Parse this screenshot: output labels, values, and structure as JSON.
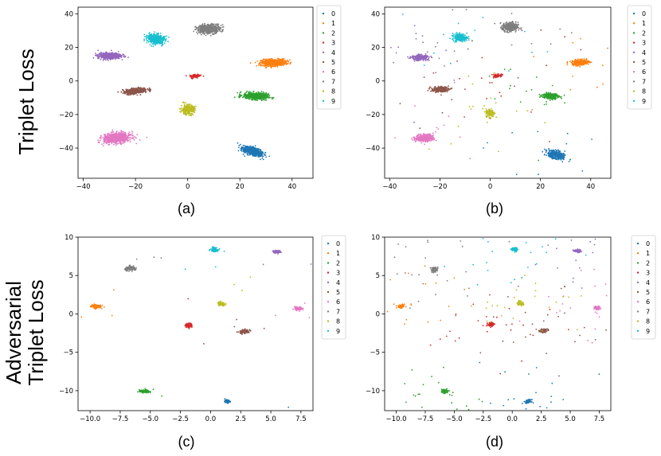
{
  "row_labels": [
    "Triplet Loss",
    "Adversarial",
    "Triplet Loss"
  ],
  "panels": [
    {
      "caption": "(a)"
    },
    {
      "caption": "(b)"
    },
    {
      "caption": "(c)"
    },
    {
      "caption": "(d)"
    }
  ],
  "colors": [
    "#1f77b4",
    "#ff7f0e",
    "#2ca02c",
    "#d62728",
    "#9467bd",
    "#8c564b",
    "#e377c2",
    "#7f7f7f",
    "#bcbd22",
    "#17becf"
  ],
  "chart_data": [
    {
      "type": "scatter",
      "title": "(a) Triplet Loss",
      "xlim": [
        -42,
        48
      ],
      "ylim": [
        -58,
        44
      ],
      "xticks": [
        -40,
        -20,
        0,
        20,
        40
      ],
      "xtick_labels": [
        "−40",
        "−20",
        "0",
        "20",
        "40"
      ],
      "yticks": [
        -40,
        -20,
        0,
        20,
        40
      ],
      "ytick_labels": [
        "−40",
        "−20",
        "0",
        "20",
        "40"
      ],
      "legend": [
        "0",
        "1",
        "2",
        "3",
        "4",
        "5",
        "6",
        "7",
        "8",
        "9"
      ],
      "legend_position": "right-outside",
      "series": [
        {
          "name": "0",
          "center": [
            25,
            -42
          ]
        },
        {
          "name": "1",
          "center": [
            33,
            11
          ]
        },
        {
          "name": "2",
          "center": [
            26,
            -9
          ]
        },
        {
          "name": "3",
          "center": [
            3,
            3
          ]
        },
        {
          "name": "4",
          "center": [
            -30,
            15
          ]
        },
        {
          "name": "5",
          "center": [
            -20,
            -6
          ]
        },
        {
          "name": "6",
          "center": [
            -27,
            -34
          ]
        },
        {
          "name": "7",
          "center": [
            8,
            31
          ]
        },
        {
          "name": "8",
          "center": [
            0,
            -17
          ]
        },
        {
          "name": "9",
          "center": [
            -12,
            25
          ]
        }
      ]
    },
    {
      "type": "scatter",
      "title": "(b) Triplet Loss",
      "xlim": [
        -42,
        48
      ],
      "ylim": [
        -58,
        44
      ],
      "xticks": [
        -40,
        -20,
        0,
        20,
        40
      ],
      "xtick_labels": [
        "−40",
        "−20",
        "0",
        "20",
        "40"
      ],
      "yticks": [
        -40,
        -20,
        0,
        20,
        40
      ],
      "ytick_labels": [
        "−40",
        "−20",
        "0",
        "20",
        "40"
      ],
      "legend": [
        "0",
        "1",
        "2",
        "3",
        "4",
        "5",
        "6",
        "7",
        "8",
        "9"
      ],
      "legend_position": "right-outside",
      "series": [
        {
          "name": "0",
          "center": [
            26,
            -44
          ]
        },
        {
          "name": "1",
          "center": [
            36,
            11
          ]
        },
        {
          "name": "2",
          "center": [
            24,
            -9
          ]
        },
        {
          "name": "3",
          "center": [
            3,
            3
          ]
        },
        {
          "name": "4",
          "center": [
            -28,
            14
          ]
        },
        {
          "name": "5",
          "center": [
            -20,
            -5
          ]
        },
        {
          "name": "6",
          "center": [
            -26,
            -34
          ]
        },
        {
          "name": "7",
          "center": [
            8,
            32
          ]
        },
        {
          "name": "8",
          "center": [
            0,
            -19
          ]
        },
        {
          "name": "9",
          "center": [
            -12,
            26
          ]
        }
      ]
    },
    {
      "type": "scatter",
      "title": "(c) Adversarial Triplet Loss",
      "xlim": [
        -11,
        8.5
      ],
      "ylim": [
        -12.6,
        10
      ],
      "xticks": [
        -10,
        -7.5,
        -5,
        -2.5,
        0,
        2.5,
        5,
        7.5
      ],
      "xtick_labels": [
        "−10.0",
        "−7.5",
        "−5.0",
        "−2.5",
        "0.0",
        "2.5",
        "5.0",
        "7.5"
      ],
      "yticks": [
        -10,
        -5,
        0,
        5,
        10
      ],
      "ytick_labels": [
        "−10",
        "−5",
        "0",
        "5",
        "10"
      ],
      "legend": [
        "0",
        "1",
        "2",
        "3",
        "4",
        "5",
        "6",
        "7",
        "8",
        "9"
      ],
      "legend_position": "right-outside",
      "series": [
        {
          "name": "0",
          "center": [
            1.4,
            -11.4
          ]
        },
        {
          "name": "1",
          "center": [
            -9.5,
            1
          ]
        },
        {
          "name": "2",
          "center": [
            -5.5,
            -10.1
          ]
        },
        {
          "name": "3",
          "center": [
            -1.8,
            -1.5
          ]
        },
        {
          "name": "4",
          "center": [
            5.5,
            8.1
          ]
        },
        {
          "name": "5",
          "center": [
            2.8,
            -2.3
          ]
        },
        {
          "name": "6",
          "center": [
            7.3,
            0.7
          ]
        },
        {
          "name": "7",
          "center": [
            -6.6,
            5.9
          ]
        },
        {
          "name": "8",
          "center": [
            0.9,
            1.3
          ]
        },
        {
          "name": "9",
          "center": [
            0.3,
            8.4
          ]
        }
      ]
    },
    {
      "type": "scatter",
      "title": "(d) Adversarial Triplet Loss",
      "xlim": [
        -11,
        8.5
      ],
      "ylim": [
        -12.6,
        10
      ],
      "xticks": [
        -10,
        -7.5,
        -5,
        -2.5,
        0,
        2.5,
        5,
        7.5
      ],
      "xtick_labels": [
        "−10.0",
        "−7.5",
        "−5.0",
        "−2.5",
        "0.0",
        "2.5",
        "5.0",
        "7.5"
      ],
      "yticks": [
        -10,
        -5,
        0,
        5,
        10
      ],
      "ytick_labels": [
        "−10",
        "−5",
        "0",
        "5",
        "10"
      ],
      "legend": [
        "0",
        "1",
        "2",
        "3",
        "4",
        "5",
        "6",
        "7",
        "8",
        "9"
      ],
      "legend_position": "right-outside",
      "series": [
        {
          "name": "0",
          "center": [
            1.4,
            -11.4
          ]
        },
        {
          "name": "1",
          "center": [
            -9.6,
            1
          ]
        },
        {
          "name": "2",
          "center": [
            -5.8,
            -10.1
          ]
        },
        {
          "name": "3",
          "center": [
            -1.8,
            -1.4
          ]
        },
        {
          "name": "4",
          "center": [
            5.6,
            8.2
          ]
        },
        {
          "name": "5",
          "center": [
            2.7,
            -2.2
          ]
        },
        {
          "name": "6",
          "center": [
            7.3,
            0.8
          ]
        },
        {
          "name": "7",
          "center": [
            -6.7,
            5.8
          ]
        },
        {
          "name": "8",
          "center": [
            0.7,
            1.4
          ]
        },
        {
          "name": "9",
          "center": [
            0.2,
            8.4
          ]
        }
      ]
    }
  ]
}
